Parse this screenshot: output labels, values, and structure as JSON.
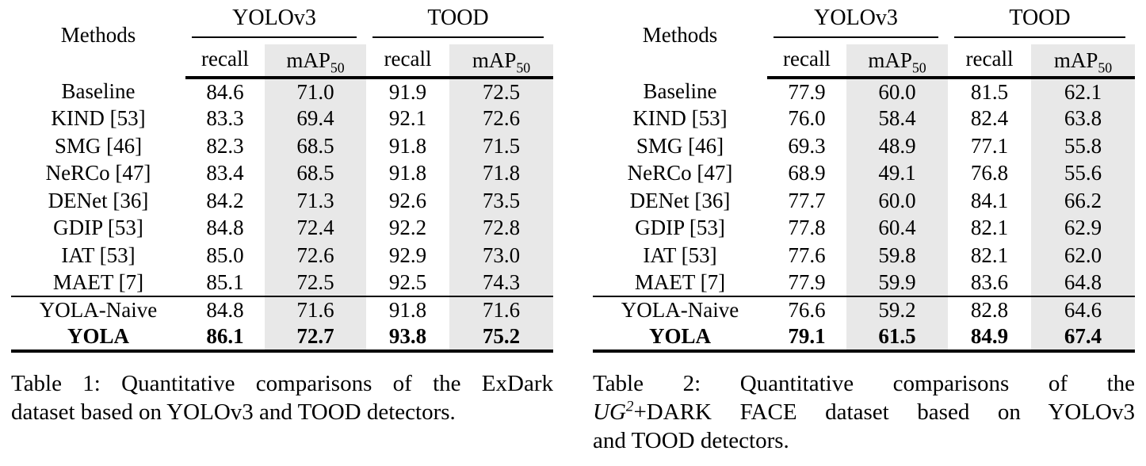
{
  "page": {
    "background": "#ffffff",
    "text_color": "#000000",
    "shade_color": "#e8e8e8"
  },
  "tables": [
    {
      "name": "Table 1",
      "methods_header": "Methods",
      "groups": [
        {
          "label": "YOLOv3",
          "columns": [
            {
              "label": "recall",
              "subscript": "",
              "shaded": false
            },
            {
              "label": "mAP",
              "subscript": "50",
              "shaded": true
            }
          ]
        },
        {
          "label": "TOOD",
          "columns": [
            {
              "label": "recall",
              "subscript": "",
              "shaded": false
            },
            {
              "label": "mAP",
              "subscript": "50",
              "shaded": true
            }
          ]
        }
      ],
      "rows": [
        {
          "method": "Baseline",
          "values": [
            "84.6",
            "71.0",
            "91.9",
            "72.5"
          ],
          "bold": false,
          "section_start": false
        },
        {
          "method": "KIND [53]",
          "values": [
            "83.3",
            "69.4",
            "92.1",
            "72.6"
          ],
          "bold": false,
          "section_start": false
        },
        {
          "method": "SMG [46]",
          "values": [
            "82.3",
            "68.5",
            "91.8",
            "71.5"
          ],
          "bold": false,
          "section_start": false
        },
        {
          "method": "NeRCo [47]",
          "values": [
            "83.4",
            "68.5",
            "91.8",
            "71.8"
          ],
          "bold": false,
          "section_start": false
        },
        {
          "method": "DENet [36]",
          "values": [
            "84.2",
            "71.3",
            "92.6",
            "73.5"
          ],
          "bold": false,
          "section_start": false
        },
        {
          "method": "GDIP [53]",
          "values": [
            "84.8",
            "72.4",
            "92.2",
            "72.8"
          ],
          "bold": false,
          "section_start": false
        },
        {
          "method": "IAT [53]",
          "values": [
            "85.0",
            "72.6",
            "92.9",
            "73.0"
          ],
          "bold": false,
          "section_start": false
        },
        {
          "method": "MAET [7]",
          "values": [
            "85.1",
            "72.5",
            "92.5",
            "74.3"
          ],
          "bold": false,
          "section_start": false
        },
        {
          "method": "YOLA-Naive",
          "values": [
            "84.8",
            "71.6",
            "91.8",
            "71.6"
          ],
          "bold": false,
          "section_start": true
        },
        {
          "method": "YOLA",
          "values": [
            "86.1",
            "72.7",
            "93.8",
            "75.2"
          ],
          "bold": true,
          "section_start": false
        }
      ],
      "caption_lines": [
        {
          "justify": true,
          "segments": [
            {
              "text": "Table 1: Quantitative comparisons of the ExDark",
              "italic": false,
              "sup": false
            }
          ]
        },
        {
          "justify": false,
          "segments": [
            {
              "text": "dataset based on YOLOv3 and TOOD detectors.",
              "italic": false,
              "sup": false
            }
          ]
        }
      ]
    },
    {
      "name": "Table 2",
      "methods_header": "Methods",
      "groups": [
        {
          "label": "YOLOv3",
          "columns": [
            {
              "label": "recall",
              "subscript": "",
              "shaded": false
            },
            {
              "label": "mAP",
              "subscript": "50",
              "shaded": true
            }
          ]
        },
        {
          "label": "TOOD",
          "columns": [
            {
              "label": "recall",
              "subscript": "",
              "shaded": false
            },
            {
              "label": "mAP",
              "subscript": "50",
              "shaded": true
            }
          ]
        }
      ],
      "rows": [
        {
          "method": "Baseline",
          "values": [
            "77.9",
            "60.0",
            "81.5",
            "62.1"
          ],
          "bold": false,
          "section_start": false
        },
        {
          "method": "KIND [53]",
          "values": [
            "76.0",
            "58.4",
            "82.4",
            "63.8"
          ],
          "bold": false,
          "section_start": false
        },
        {
          "method": "SMG [46]",
          "values": [
            "69.3",
            "48.9",
            "77.1",
            "55.8"
          ],
          "bold": false,
          "section_start": false
        },
        {
          "method": "NeRCo [47]",
          "values": [
            "68.9",
            "49.1",
            "76.8",
            "55.6"
          ],
          "bold": false,
          "section_start": false
        },
        {
          "method": "DENet [36]",
          "values": [
            "77.7",
            "60.0",
            "84.1",
            "66.2"
          ],
          "bold": false,
          "section_start": false
        },
        {
          "method": "GDIP [53]",
          "values": [
            "77.8",
            "60.4",
            "82.1",
            "62.9"
          ],
          "bold": false,
          "section_start": false
        },
        {
          "method": "IAT [53]",
          "values": [
            "77.6",
            "59.8",
            "82.1",
            "62.0"
          ],
          "bold": false,
          "section_start": false
        },
        {
          "method": "MAET [7]",
          "values": [
            "77.9",
            "59.9",
            "83.6",
            "64.8"
          ],
          "bold": false,
          "section_start": false
        },
        {
          "method": "YOLA-Naive",
          "values": [
            "76.6",
            "59.2",
            "82.8",
            "64.6"
          ],
          "bold": false,
          "section_start": true
        },
        {
          "method": "YOLA",
          "values": [
            "79.1",
            "61.5",
            "84.9",
            "67.4"
          ],
          "bold": true,
          "section_start": false
        }
      ],
      "caption_lines": [
        {
          "justify": true,
          "segments": [
            {
              "text": "Table 2: Quantitative comparisons of the",
              "italic": false,
              "sup": false
            }
          ]
        },
        {
          "justify": true,
          "segments": [
            {
              "text": "UG",
              "italic": true,
              "sup": false
            },
            {
              "text": "2",
              "italic": true,
              "sup": true
            },
            {
              "text": "+DARK FACE dataset based on YOLOv3",
              "italic": false,
              "sup": false
            }
          ]
        },
        {
          "justify": false,
          "segments": [
            {
              "text": "and TOOD detectors.",
              "italic": false,
              "sup": false
            }
          ]
        }
      ]
    }
  ]
}
